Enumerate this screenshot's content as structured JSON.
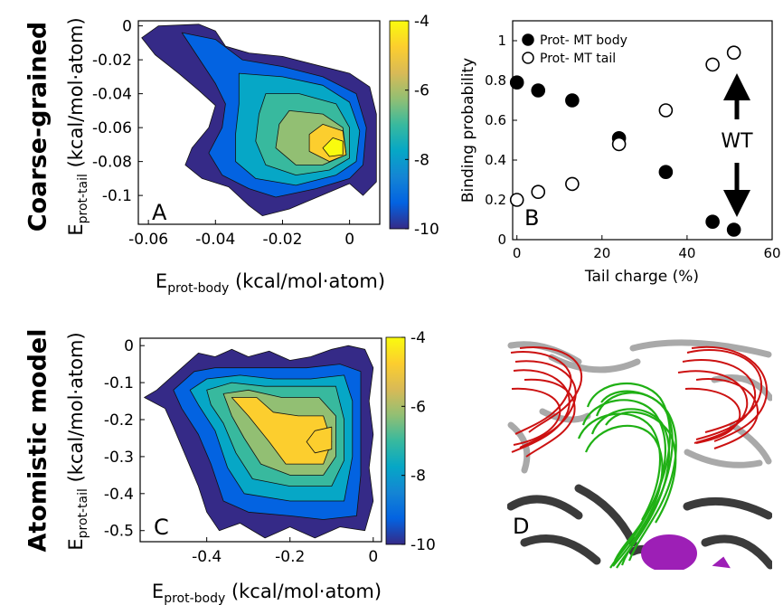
{
  "row_titles": {
    "top": "Coarse-grained",
    "bottom": "Atomistic model"
  },
  "panel_letters": {
    "a": "A",
    "b": "B",
    "c": "C",
    "d": "D"
  },
  "axis_labels": {
    "body_main": "E",
    "body_sub": "prot-body",
    "body_unit": " (kcal/mol·atom)",
    "tail_main": "E",
    "tail_sub": "prot-tail",
    "tail_unit": " (kcal/mol·atom)",
    "binding": "Binding probability",
    "charge": "Tail charge (%)"
  },
  "wt_label": "WT",
  "colors": {
    "parula": [
      "#352a87",
      "#0363e1",
      "#1485d4",
      "#06a7c6",
      "#38b99e",
      "#92bf73",
      "#d9ba56",
      "#fcce2e",
      "#f9fb0e"
    ]
  },
  "chart_data": [
    {
      "type": "heatmap",
      "panel": "A",
      "x_ticks": [
        "-0.06",
        "-0.04",
        "-0.02",
        "0"
      ],
      "x_tick_values": [
        -0.06,
        -0.04,
        -0.02,
        0
      ],
      "y_ticks": [
        "0",
        "-0.02",
        "-0.04",
        "-0.06",
        "-0.08",
        "-0.1"
      ],
      "y_tick_values": [
        0,
        -0.02,
        -0.04,
        -0.06,
        -0.08,
        -0.1
      ],
      "xlim": [
        -0.063,
        0.009
      ],
      "ylim": [
        -0.117,
        0.003
      ],
      "colorbar": {
        "min": -10,
        "max": -4,
        "ticks": [
          "-4",
          "-6",
          "-8",
          "-10"
        ],
        "tick_values": [
          -4,
          -6,
          -8,
          -10
        ]
      },
      "center": [
        -0.004,
        -0.073
      ],
      "peak": -4.2,
      "levels": [
        {
          "v": -10,
          "pts": [
            [
              -0.057,
              0.0
            ],
            [
              -0.045,
              0.001
            ],
            [
              -0.04,
              -0.003
            ],
            [
              -0.037,
              -0.012
            ],
            [
              -0.03,
              -0.016
            ],
            [
              -0.02,
              -0.018
            ],
            [
              -0.01,
              -0.023
            ],
            [
              0.0,
              -0.028
            ],
            [
              0.006,
              -0.036
            ],
            [
              0.008,
              -0.052
            ],
            [
              0.008,
              -0.075
            ],
            [
              0.008,
              -0.092
            ],
            [
              0.004,
              -0.1
            ],
            [
              0.0,
              -0.093
            ],
            [
              -0.006,
              -0.098
            ],
            [
              -0.012,
              -0.103
            ],
            [
              -0.018,
              -0.108
            ],
            [
              -0.026,
              -0.112
            ],
            [
              -0.03,
              -0.106
            ],
            [
              -0.036,
              -0.095
            ],
            [
              -0.044,
              -0.09
            ],
            [
              -0.049,
              -0.082
            ],
            [
              -0.047,
              -0.072
            ],
            [
              -0.042,
              -0.06
            ],
            [
              -0.04,
              -0.047
            ],
            [
              -0.045,
              -0.038
            ],
            [
              -0.051,
              -0.028
            ],
            [
              -0.058,
              -0.017
            ],
            [
              -0.062,
              -0.007
            ]
          ]
        },
        {
          "v": -9,
          "pts": [
            [
              -0.05,
              -0.004
            ],
            [
              -0.04,
              -0.008
            ],
            [
              -0.032,
              -0.02
            ],
            [
              -0.02,
              -0.024
            ],
            [
              -0.008,
              -0.03
            ],
            [
              0.002,
              -0.04
            ],
            [
              0.005,
              -0.06
            ],
            [
              0.004,
              -0.082
            ],
            [
              0.0,
              -0.09
            ],
            [
              -0.01,
              -0.096
            ],
            [
              -0.022,
              -0.101
            ],
            [
              -0.03,
              -0.096
            ],
            [
              -0.038,
              -0.088
            ],
            [
              -0.042,
              -0.075
            ],
            [
              -0.038,
              -0.06
            ],
            [
              -0.037,
              -0.046
            ],
            [
              -0.04,
              -0.034
            ]
          ]
        },
        {
          "v": -8,
          "pts": [
            [
              -0.033,
              -0.028
            ],
            [
              -0.02,
              -0.03
            ],
            [
              -0.008,
              -0.035
            ],
            [
              0.0,
              -0.045
            ],
            [
              0.003,
              -0.062
            ],
            [
              0.002,
              -0.08
            ],
            [
              -0.004,
              -0.088
            ],
            [
              -0.016,
              -0.094
            ],
            [
              -0.028,
              -0.09
            ],
            [
              -0.034,
              -0.08
            ],
            [
              -0.034,
              -0.064
            ],
            [
              -0.033,
              -0.046
            ]
          ]
        },
        {
          "v": -7,
          "pts": [
            [
              -0.025,
              -0.04
            ],
            [
              -0.015,
              -0.04
            ],
            [
              -0.004,
              -0.046
            ],
            [
              0.0,
              -0.06
            ],
            [
              0.0,
              -0.078
            ],
            [
              -0.006,
              -0.085
            ],
            [
              -0.016,
              -0.088
            ],
            [
              -0.025,
              -0.082
            ],
            [
              -0.028,
              -0.068
            ],
            [
              -0.027,
              -0.052
            ]
          ]
        },
        {
          "v": -6,
          "pts": [
            [
              -0.018,
              -0.05
            ],
            [
              -0.008,
              -0.052
            ],
            [
              -0.002,
              -0.06
            ],
            [
              -0.001,
              -0.076
            ],
            [
              -0.008,
              -0.082
            ],
            [
              -0.016,
              -0.082
            ],
            [
              -0.022,
              -0.072
            ],
            [
              -0.021,
              -0.058
            ]
          ]
        },
        {
          "v": -5,
          "pts": [
            [
              -0.008,
              -0.058
            ],
            [
              -0.002,
              -0.062
            ],
            [
              -0.001,
              -0.076
            ],
            [
              -0.006,
              -0.08
            ],
            [
              -0.012,
              -0.074
            ],
            [
              -0.012,
              -0.064
            ]
          ]
        },
        {
          "v": -4.3,
          "pts": [
            [
              -0.005,
              -0.066
            ],
            [
              -0.002,
              -0.068
            ],
            [
              -0.002,
              -0.076
            ],
            [
              -0.006,
              -0.077
            ],
            [
              -0.008,
              -0.072
            ]
          ]
        }
      ]
    },
    {
      "type": "scatter",
      "panel": "B",
      "xlabel": "Tail charge (%)",
      "ylabel": "Binding probability",
      "xlim": [
        -1,
        60
      ],
      "ylim": [
        0,
        1.1
      ],
      "x_ticks": [
        "0",
        "20",
        "40",
        "60"
      ],
      "x_tick_values": [
        0,
        20,
        40,
        60
      ],
      "y_ticks": [
        "0",
        "0.2",
        "0.4",
        "0.6",
        "0.8",
        "1"
      ],
      "y_tick_values": [
        0,
        0.2,
        0.4,
        0.6,
        0.8,
        1
      ],
      "legend_position": "top-left",
      "series": [
        {
          "name": "Prot- MT body",
          "marker": "filled",
          "x": [
            0,
            5,
            13,
            24,
            35,
            46,
            51
          ],
          "y": [
            0.79,
            0.75,
            0.7,
            0.51,
            0.34,
            0.09,
            0.05
          ]
        },
        {
          "name": "Prot- MT tail",
          "marker": "open",
          "x": [
            0,
            5,
            13,
            24,
            35,
            46,
            51
          ],
          "y": [
            0.2,
            0.24,
            0.28,
            0.48,
            0.65,
            0.88,
            0.94
          ]
        }
      ],
      "annotation": {
        "text": "WT",
        "x": 51
      }
    },
    {
      "type": "heatmap",
      "panel": "C",
      "x_ticks": [
        "-0.4",
        "-0.2",
        "0"
      ],
      "x_tick_values": [
        -0.4,
        -0.2,
        0
      ],
      "y_ticks": [
        "0",
        "-0.1",
        "-0.2",
        "-0.3",
        "-0.4",
        "-0.5"
      ],
      "y_tick_values": [
        0,
        -0.1,
        -0.2,
        -0.3,
        -0.4,
        -0.5
      ],
      "xlim": [
        -0.56,
        0.02
      ],
      "ylim": [
        -0.53,
        0.02
      ],
      "colorbar": {
        "min": -10,
        "max": -4,
        "ticks": [
          "-4",
          "-6",
          "-8",
          "-10"
        ],
        "tick_values": [
          -4,
          -6,
          -8,
          -10
        ]
      },
      "center": [
        -0.12,
        -0.25
      ],
      "peak": -4.6,
      "levels": [
        {
          "v": -10,
          "pts": [
            [
              -0.52,
              -0.12
            ],
            [
              -0.48,
              -0.08
            ],
            [
              -0.42,
              -0.02
            ],
            [
              -0.38,
              -0.03
            ],
            [
              -0.34,
              -0.01
            ],
            [
              -0.3,
              -0.03
            ],
            [
              -0.25,
              -0.015
            ],
            [
              -0.2,
              -0.04
            ],
            [
              -0.15,
              -0.03
            ],
            [
              -0.1,
              -0.01
            ],
            [
              -0.06,
              0.0
            ],
            [
              -0.02,
              -0.01
            ],
            [
              0.0,
              -0.06
            ],
            [
              -0.01,
              -0.15
            ],
            [
              0.0,
              -0.24
            ],
            [
              -0.01,
              -0.33
            ],
            [
              0.0,
              -0.42
            ],
            [
              -0.02,
              -0.5
            ],
            [
              -0.08,
              -0.49
            ],
            [
              -0.14,
              -0.52
            ],
            [
              -0.2,
              -0.49
            ],
            [
              -0.26,
              -0.52
            ],
            [
              -0.32,
              -0.48
            ],
            [
              -0.37,
              -0.5
            ],
            [
              -0.4,
              -0.45
            ],
            [
              -0.42,
              -0.38
            ],
            [
              -0.45,
              -0.3
            ],
            [
              -0.48,
              -0.22
            ],
            [
              -0.5,
              -0.17
            ],
            [
              -0.55,
              -0.14
            ]
          ]
        },
        {
          "v": -9,
          "pts": [
            [
              -0.48,
              -0.12
            ],
            [
              -0.43,
              -0.07
            ],
            [
              -0.38,
              -0.06
            ],
            [
              -0.3,
              -0.06
            ],
            [
              -0.23,
              -0.06
            ],
            [
              -0.16,
              -0.06
            ],
            [
              -0.08,
              -0.05
            ],
            [
              -0.03,
              -0.07
            ],
            [
              -0.03,
              -0.2
            ],
            [
              -0.03,
              -0.35
            ],
            [
              -0.04,
              -0.46
            ],
            [
              -0.12,
              -0.47
            ],
            [
              -0.2,
              -0.46
            ],
            [
              -0.3,
              -0.45
            ],
            [
              -0.36,
              -0.42
            ],
            [
              -0.39,
              -0.32
            ],
            [
              -0.42,
              -0.24
            ],
            [
              -0.46,
              -0.17
            ]
          ]
        },
        {
          "v": -8,
          "pts": [
            [
              -0.44,
              -0.12
            ],
            [
              -0.4,
              -0.09
            ],
            [
              -0.32,
              -0.08
            ],
            [
              -0.24,
              -0.09
            ],
            [
              -0.15,
              -0.09
            ],
            [
              -0.07,
              -0.08
            ],
            [
              -0.05,
              -0.15
            ],
            [
              -0.05,
              -0.3
            ],
            [
              -0.07,
              -0.42
            ],
            [
              -0.2,
              -0.42
            ],
            [
              -0.31,
              -0.4
            ],
            [
              -0.35,
              -0.33
            ],
            [
              -0.38,
              -0.23
            ],
            [
              -0.42,
              -0.16
            ]
          ]
        },
        {
          "v": -7,
          "pts": [
            [
              -0.4,
              -0.12
            ],
            [
              -0.34,
              -0.1
            ],
            [
              -0.26,
              -0.11
            ],
            [
              -0.16,
              -0.11
            ],
            [
              -0.09,
              -0.11
            ],
            [
              -0.07,
              -0.2
            ],
            [
              -0.07,
              -0.31
            ],
            [
              -0.1,
              -0.38
            ],
            [
              -0.2,
              -0.38
            ],
            [
              -0.29,
              -0.36
            ],
            [
              -0.33,
              -0.29
            ],
            [
              -0.36,
              -0.21
            ],
            [
              -0.39,
              -0.16
            ]
          ]
        },
        {
          "v": -6,
          "pts": [
            [
              -0.36,
              -0.13
            ],
            [
              -0.3,
              -0.12
            ],
            [
              -0.22,
              -0.14
            ],
            [
              -0.13,
              -0.14
            ],
            [
              -0.09,
              -0.19
            ],
            [
              -0.09,
              -0.3
            ],
            [
              -0.12,
              -0.35
            ],
            [
              -0.2,
              -0.35
            ],
            [
              -0.27,
              -0.32
            ],
            [
              -0.31,
              -0.25
            ],
            [
              -0.34,
              -0.19
            ]
          ]
        },
        {
          "v": -5,
          "pts": [
            [
              -0.34,
              -0.14
            ],
            [
              -0.28,
              -0.14
            ],
            [
              -0.24,
              -0.18
            ],
            [
              -0.18,
              -0.19
            ],
            [
              -0.12,
              -0.19
            ],
            [
              -0.1,
              -0.26
            ],
            [
              -0.12,
              -0.32
            ],
            [
              -0.21,
              -0.32
            ],
            [
              -0.25,
              -0.26
            ],
            [
              -0.3,
              -0.19
            ]
          ]
        },
        {
          "v": -4.7,
          "pts": [
            [
              -0.14,
              -0.23
            ],
            [
              -0.1,
              -0.22
            ],
            [
              -0.1,
              -0.28
            ],
            [
              -0.14,
              -0.29
            ],
            [
              -0.16,
              -0.26
            ]
          ]
        }
      ]
    }
  ]
}
